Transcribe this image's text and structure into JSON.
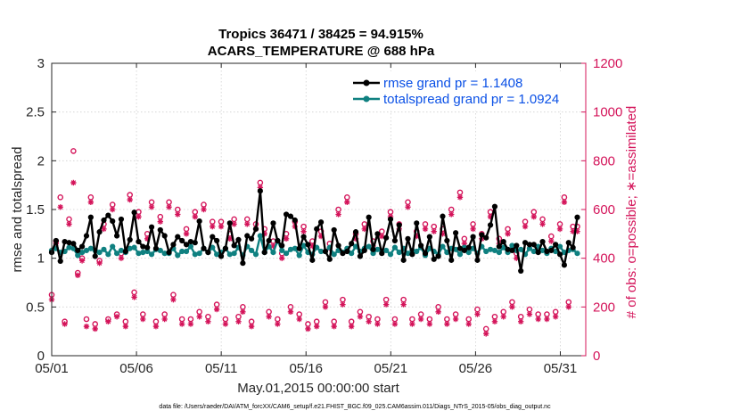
{
  "chart_data": {
    "type": "line",
    "title": "Tropics 36471 / 38425 = 94.915%",
    "subtitle": "ACARS_TEMPERATURE @ 688 hPa",
    "xlabel": "May.01,2015 00:00:00 start",
    "ylabel_left": "rmse and totalspread",
    "ylabel_right": "# of obs: o=possible; ∗=assimilated",
    "footnote": "data file: /Users/raeder/DAI/ATM_forcXX/CAM6_setup/f.e21.FHIST_BGC.f09_025.CAM6assim.011/Diags_NTrS_2015-05/obs_diag_output.nc",
    "xlim": [
      0,
      31.5
    ],
    "ylim_left": [
      0,
      3
    ],
    "ylim_right": [
      0,
      1200
    ],
    "x_ticks": [
      0,
      5,
      10,
      15,
      20,
      25,
      30
    ],
    "x_tick_labels": [
      "05/01",
      "05/06",
      "05/11",
      "05/16",
      "05/21",
      "05/26",
      "05/31"
    ],
    "y_left_ticks": [
      "0",
      "0.5",
      "1",
      "1.5",
      "2",
      "2.5",
      "3"
    ],
    "y_right_ticks": [
      "0",
      "200",
      "400",
      "600",
      "800",
      "1000",
      "1200"
    ],
    "legend_position": "top-right",
    "colors": {
      "rmse": "#000000",
      "spread": "#0f8080",
      "obs": "#d4145a",
      "legend_text": "#0a50e6"
    },
    "series": [
      {
        "name": "rmse grand pr = 1.1408",
        "axis": "left",
        "x": [
          0.0,
          0.256,
          0.512,
          0.769,
          1.025,
          1.281,
          1.537,
          1.793,
          2.05,
          2.306,
          2.562,
          2.818,
          3.075,
          3.331,
          3.587,
          3.843,
          4.099,
          4.356,
          4.612,
          4.868,
          5.124,
          5.38,
          5.637,
          5.893,
          6.149,
          6.405,
          6.662,
          6.918,
          7.174,
          7.43,
          7.686,
          7.943,
          8.199,
          8.455,
          8.711,
          8.967,
          9.224,
          9.48,
          9.736,
          9.992,
          10.248,
          10.505,
          10.761,
          11.017,
          11.273,
          11.53,
          11.786,
          12.042,
          12.298,
          12.554,
          12.811,
          13.067,
          13.323,
          13.579,
          13.835,
          14.092,
          14.348,
          14.604,
          14.86,
          15.116,
          15.373,
          15.629,
          15.885,
          16.141,
          16.397,
          16.654,
          16.91,
          17.166,
          17.422,
          17.679,
          17.935,
          18.191,
          18.447,
          18.703,
          18.96,
          19.216,
          19.472,
          19.728,
          19.984,
          20.241,
          20.497,
          20.753,
          21.009,
          21.265,
          21.522,
          21.778,
          22.034,
          22.29,
          22.546,
          22.803,
          23.059,
          23.315,
          23.571,
          23.828,
          24.084,
          24.34,
          24.596,
          24.852,
          25.109,
          25.365,
          25.621,
          25.877,
          26.133,
          26.39,
          26.646,
          26.902,
          27.158,
          27.414,
          27.671,
          27.927,
          28.183,
          28.439,
          28.695,
          28.952,
          29.208,
          29.464,
          29.72,
          29.977,
          30.233,
          30.489,
          30.745,
          31.001
        ],
        "values": [
          1.06,
          1.18,
          0.97,
          1.17,
          1.16,
          1.15,
          1.08,
          1.12,
          1.23,
          1.42,
          1.02,
          1.27,
          1.39,
          1.44,
          1.38,
          1.23,
          1.4,
          1.07,
          1.19,
          1.47,
          1.17,
          1.12,
          1.11,
          1.32,
          1.1,
          1.29,
          1.23,
          1.06,
          1.14,
          1.22,
          1.18,
          1.14,
          1.17,
          1.16,
          1.38,
          1.1,
          1.06,
          1.22,
          1.18,
          1.02,
          1.1,
          1.36,
          1.13,
          1.19,
          0.95,
          1.23,
          1.2,
          1.3,
          1.69,
          1.06,
          1.18,
          1.36,
          1.18,
          1.13,
          1.45,
          1.43,
          1.39,
          1.1,
          1.22,
          1.14,
          0.98,
          1.3,
          1.37,
          1.07,
          0.99,
          1.29,
          1.13,
          1.05,
          1.07,
          1.15,
          1.27,
          1.02,
          1.08,
          1.42,
          1.09,
          1.25,
          1.05,
          1.21,
          1.4,
          1.18,
          1.34,
          0.98,
          1.2,
          1.04,
          1.36,
          1.13,
          1.05,
          1.22,
          0.99,
          1.02,
          1.43,
          1.18,
          0.98,
          1.26,
          1.1,
          1.08,
          1.11,
          1.22,
          0.98,
          1.24,
          1.21,
          1.34,
          1.53,
          1.12,
          1.17,
          1.09,
          1.08,
          1.13,
          0.87,
          1.16,
          1.14,
          1.14,
          1.06,
          1.17,
          1.07,
          1.08,
          1.14,
          1.04,
          0.93,
          1.16,
          1.11,
          1.42
        ]
      },
      {
        "name": "totalspread grand pr = 1.0924",
        "axis": "left",
        "x": [
          0.0,
          0.256,
          0.512,
          0.769,
          1.025,
          1.281,
          1.537,
          1.793,
          2.05,
          2.306,
          2.562,
          2.818,
          3.075,
          3.331,
          3.587,
          3.843,
          4.099,
          4.356,
          4.612,
          4.868,
          5.124,
          5.38,
          5.637,
          5.893,
          6.149,
          6.405,
          6.662,
          6.918,
          7.174,
          7.43,
          7.686,
          7.943,
          8.199,
          8.455,
          8.711,
          8.967,
          9.224,
          9.48,
          9.736,
          9.992,
          10.248,
          10.505,
          10.761,
          11.017,
          11.273,
          11.53,
          11.786,
          12.042,
          12.298,
          12.554,
          12.811,
          13.067,
          13.323,
          13.579,
          13.835,
          14.092,
          14.348,
          14.604,
          14.86,
          15.116,
          15.373,
          15.629,
          15.885,
          16.141,
          16.397,
          16.654,
          16.91,
          17.166,
          17.422,
          17.679,
          17.935,
          18.191,
          18.447,
          18.703,
          18.96,
          19.216,
          19.472,
          19.728,
          19.984,
          20.241,
          20.497,
          20.753,
          21.009,
          21.265,
          21.522,
          21.778,
          22.034,
          22.29,
          22.546,
          22.803,
          23.059,
          23.315,
          23.571,
          23.828,
          24.084,
          24.34,
          24.596,
          24.852,
          25.109,
          25.365,
          25.621,
          25.877,
          26.133,
          26.39,
          26.646,
          26.902,
          27.158,
          27.414,
          27.671,
          27.927,
          28.183,
          28.439,
          28.695,
          28.952,
          29.208,
          29.464,
          29.72,
          29.977,
          30.233,
          30.489,
          30.745,
          31.001
        ],
        "values": [
          1.08,
          1.1,
          1.06,
          1.07,
          1.11,
          1.1,
          1.03,
          1.06,
          1.08,
          1.1,
          1.08,
          1.06,
          1.09,
          1.04,
          1.12,
          1.05,
          1.08,
          1.06,
          1.1,
          1.11,
          1.05,
          1.06,
          1.07,
          1.04,
          1.09,
          1.08,
          1.05,
          1.05,
          1.1,
          1.03,
          1.07,
          1.07,
          1.12,
          1.04,
          1.05,
          1.1,
          1.06,
          1.11,
          1.04,
          1.06,
          1.1,
          1.04,
          1.05,
          1.11,
          1.03,
          1.12,
          1.08,
          1.04,
          1.23,
          1.06,
          1.12,
          1.06,
          1.18,
          1.08,
          1.05,
          1.09,
          1.1,
          1.03,
          1.13,
          1.06,
          1.04,
          1.11,
          1.07,
          1.07,
          1.11,
          1.04,
          1.08,
          1.06,
          1.1,
          1.05,
          1.12,
          1.07,
          1.1,
          1.12,
          1.05,
          1.09,
          1.07,
          1.08,
          1.04,
          1.11,
          1.06,
          1.1,
          1.05,
          1.08,
          1.07,
          1.11,
          1.03,
          1.1,
          1.07,
          1.04,
          1.12,
          1.06,
          1.1,
          1.09,
          1.04,
          1.11,
          1.06,
          1.1,
          1.05,
          1.12,
          1.07,
          1.09,
          1.08,
          1.06,
          1.11,
          1.06,
          1.13,
          1.08,
          1.09,
          1.04,
          1.1,
          1.07,
          1.12,
          1.08,
          1.05,
          1.1,
          1.07,
          1.12,
          1.06,
          1.08,
          1.09,
          1.05
        ]
      },
      {
        "name": "possible obs",
        "axis": "right",
        "marker": "o",
        "x": [
          0.0,
          0.256,
          0.512,
          0.769,
          1.025,
          1.281,
          1.537,
          1.793,
          2.05,
          2.306,
          2.562,
          2.818,
          3.075,
          3.331,
          3.587,
          3.843,
          4.099,
          4.356,
          4.612,
          4.868,
          5.124,
          5.38,
          5.637,
          5.893,
          6.149,
          6.405,
          6.662,
          6.918,
          7.174,
          7.43,
          7.686,
          7.943,
          8.199,
          8.455,
          8.711,
          8.967,
          9.224,
          9.48,
          9.736,
          9.992,
          10.248,
          10.505,
          10.761,
          11.017,
          11.273,
          11.53,
          11.786,
          12.042,
          12.298,
          12.554,
          12.811,
          13.067,
          13.323,
          13.579,
          13.835,
          14.092,
          14.348,
          14.604,
          14.86,
          15.116,
          15.373,
          15.629,
          15.885,
          16.141,
          16.397,
          16.654,
          16.91,
          17.166,
          17.422,
          17.679,
          17.935,
          18.191,
          18.447,
          18.703,
          18.96,
          19.216,
          19.472,
          19.728,
          19.984,
          20.241,
          20.497,
          20.753,
          21.009,
          21.265,
          21.522,
          21.778,
          22.034,
          22.29,
          22.546,
          22.803,
          23.059,
          23.315,
          23.571,
          23.828,
          24.084,
          24.34,
          24.596,
          24.852,
          25.109,
          25.365,
          25.621,
          25.877,
          26.133,
          26.39,
          26.646,
          26.902,
          27.158,
          27.414,
          27.671,
          27.927,
          28.183,
          28.439,
          28.695,
          28.952,
          29.208,
          29.464,
          29.72,
          29.977,
          30.233,
          30.489,
          30.745,
          31.001
        ],
        "values": [
          250,
          470,
          650,
          140,
          560,
          840,
          340,
          400,
          150,
          650,
          130,
          390,
          540,
          150,
          620,
          170,
          420,
          140,
          660,
          260,
          590,
          170,
          500,
          630,
          140,
          570,
          170,
          630,
          250,
          600,
          150,
          520,
          150,
          590,
          180,
          620,
          160,
          550,
          210,
          550,
          150,
          500,
          560,
          160,
          200,
          560,
          140,
          540,
          710,
          520,
          180,
          470,
          150,
          420,
          500,
          200,
          550,
          170,
          530,
          130,
          470,
          140,
          510,
          220,
          460,
          140,
          600,
          230,
          650,
          140,
          500,
          180,
          540,
          160,
          470,
          150,
          510,
          230,
          590,
          150,
          540,
          230,
          630,
          150,
          510,
          170,
          540,
          150,
          530,
          200,
          520,
          150,
          600,
          170,
          670,
          480,
          150,
          540,
          190,
          500,
          110,
          590,
          160,
          480,
          180,
          520,
          220,
          420,
          160,
          550,
          190,
          590,
          170,
          560,
          170,
          490,
          180,
          540,
          650,
          220,
          530,
          530
        ]
      },
      {
        "name": "assimilated obs",
        "axis": "right",
        "marker": "*",
        "x": [
          0.0,
          0.256,
          0.512,
          0.769,
          1.025,
          1.281,
          1.537,
          1.793,
          2.05,
          2.306,
          2.562,
          2.818,
          3.075,
          3.331,
          3.587,
          3.843,
          4.099,
          4.356,
          4.612,
          4.868,
          5.124,
          5.38,
          5.637,
          5.893,
          6.149,
          6.405,
          6.662,
          6.918,
          7.174,
          7.43,
          7.686,
          7.943,
          8.199,
          8.455,
          8.711,
          8.967,
          9.224,
          9.48,
          9.736,
          9.992,
          10.248,
          10.505,
          10.761,
          11.017,
          11.273,
          11.53,
          11.786,
          12.042,
          12.298,
          12.554,
          12.811,
          13.067,
          13.323,
          13.579,
          13.835,
          14.092,
          14.348,
          14.604,
          14.86,
          15.116,
          15.373,
          15.629,
          15.885,
          16.141,
          16.397,
          16.654,
          16.91,
          17.166,
          17.422,
          17.679,
          17.935,
          18.191,
          18.447,
          18.703,
          18.96,
          19.216,
          19.472,
          19.728,
          19.984,
          20.241,
          20.497,
          20.753,
          21.009,
          21.265,
          21.522,
          21.778,
          22.034,
          22.29,
          22.546,
          22.803,
          23.059,
          23.315,
          23.571,
          23.828,
          24.084,
          24.34,
          24.596,
          24.852,
          25.109,
          25.365,
          25.621,
          25.877,
          26.133,
          26.39,
          26.646,
          26.902,
          27.158,
          27.414,
          27.671,
          27.927,
          28.183,
          28.439,
          28.695,
          28.952,
          29.208,
          29.464,
          29.72,
          29.977,
          30.233,
          30.489,
          30.745,
          31.001
        ],
        "values": [
          230,
          460,
          610,
          130,
          540,
          710,
          330,
          390,
          120,
          630,
          110,
          380,
          520,
          140,
          600,
          160,
          400,
          120,
          640,
          240,
          570,
          150,
          480,
          610,
          120,
          550,
          150,
          610,
          230,
          580,
          130,
          500,
          130,
          570,
          160,
          600,
          140,
          530,
          190,
          530,
          130,
          480,
          540,
          140,
          180,
          540,
          120,
          520,
          690,
          500,
          160,
          450,
          130,
          400,
          480,
          180,
          530,
          150,
          510,
          110,
          450,
          120,
          490,
          200,
          440,
          120,
          580,
          210,
          630,
          120,
          480,
          160,
          520,
          140,
          450,
          130,
          490,
          210,
          570,
          130,
          520,
          210,
          610,
          130,
          490,
          150,
          520,
          130,
          510,
          180,
          500,
          130,
          580,
          150,
          650,
          460,
          130,
          520,
          170,
          480,
          90,
          570,
          140,
          460,
          160,
          500,
          200,
          400,
          140,
          530,
          170,
          570,
          150,
          540,
          150,
          470,
          160,
          520,
          630,
          200,
          510,
          510
        ]
      }
    ]
  }
}
